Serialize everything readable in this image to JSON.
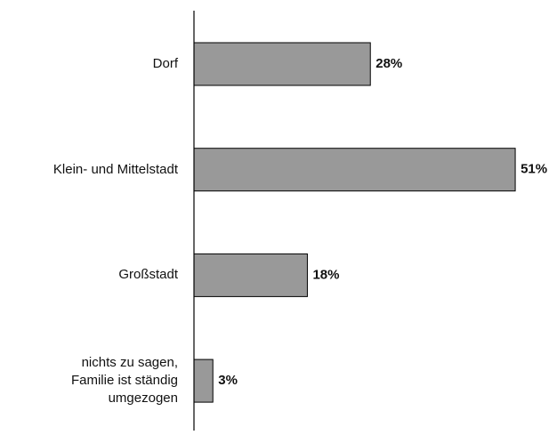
{
  "chart_data": {
    "type": "barh",
    "categories": [
      "Dorf",
      "Klein- und Mittelstadt",
      "Großstadt",
      "nichts zu sagen, Familie ist ständig umgezogen"
    ],
    "values": [
      28,
      51,
      18,
      3
    ],
    "value_labels": [
      "28%",
      "51%",
      "18%",
      "3%"
    ],
    "color": "#999999"
  }
}
